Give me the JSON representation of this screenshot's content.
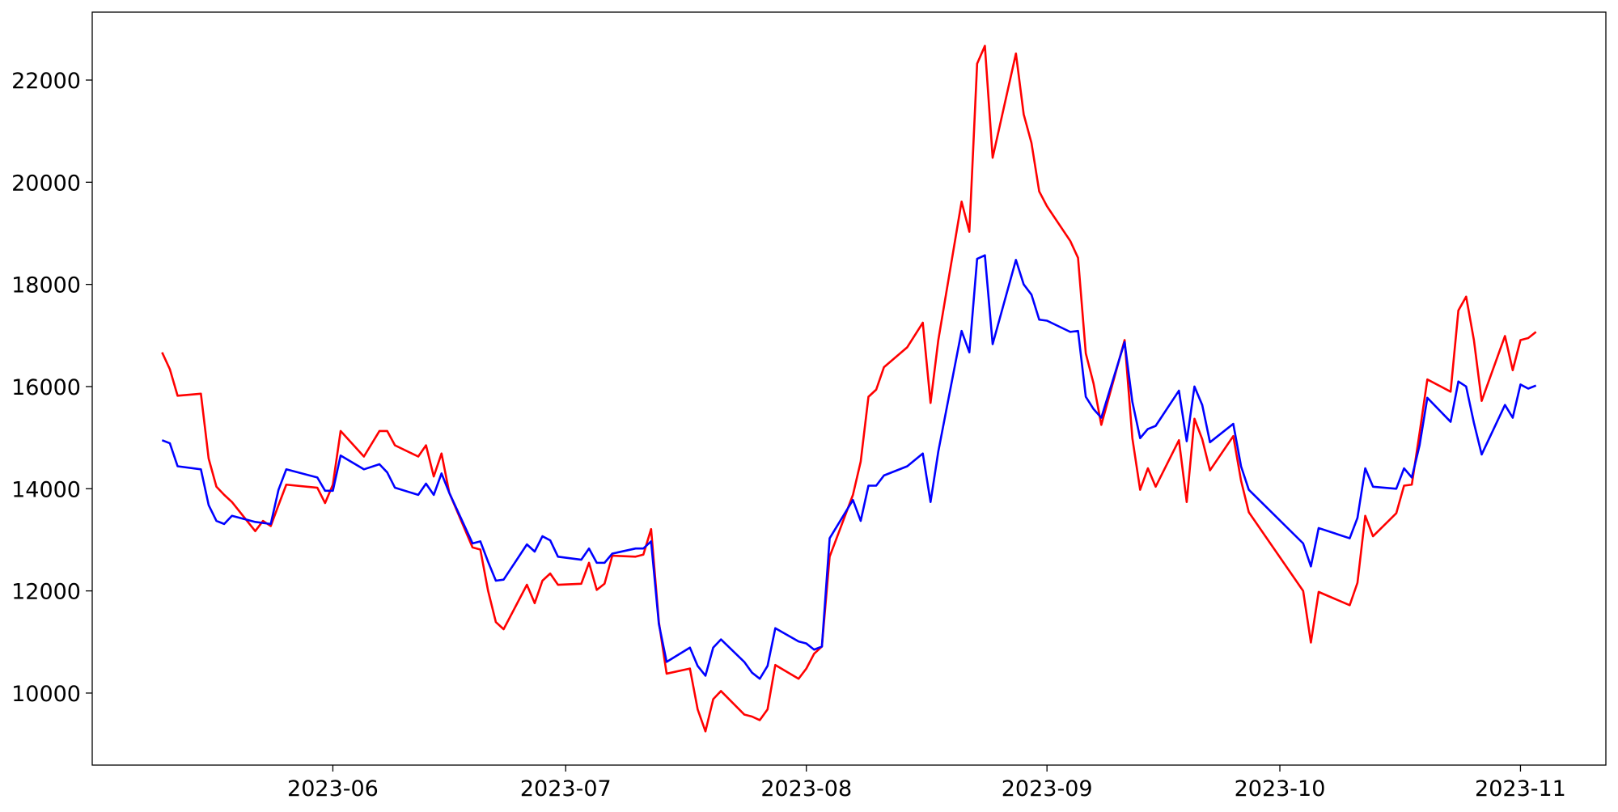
{
  "chart_data": {
    "type": "line",
    "x": [
      "2023-05-10",
      "2023-05-11",
      "2023-05-12",
      "2023-05-15",
      "2023-05-16",
      "2023-05-17",
      "2023-05-18",
      "2023-05-19",
      "2023-05-22",
      "2023-05-23",
      "2023-05-24",
      "2023-05-25",
      "2023-05-26",
      "2023-05-30",
      "2023-05-31",
      "2023-06-01",
      "2023-06-02",
      "2023-06-05",
      "2023-06-07",
      "2023-06-08",
      "2023-06-09",
      "2023-06-12",
      "2023-06-13",
      "2023-06-14",
      "2023-06-15",
      "2023-06-16",
      "2023-06-19",
      "2023-06-20",
      "2023-06-21",
      "2023-06-22",
      "2023-06-23",
      "2023-06-26",
      "2023-06-27",
      "2023-06-28",
      "2023-06-29",
      "2023-06-30",
      "2023-07-03",
      "2023-07-04",
      "2023-07-05",
      "2023-07-06",
      "2023-07-07",
      "2023-07-10",
      "2023-07-11",
      "2023-07-12",
      "2023-07-13",
      "2023-07-14",
      "2023-07-17",
      "2023-07-18",
      "2023-07-19",
      "2023-07-20",
      "2023-07-21",
      "2023-07-24",
      "2023-07-25",
      "2023-07-26",
      "2023-07-27",
      "2023-07-28",
      "2023-07-31",
      "2023-08-01",
      "2023-08-02",
      "2023-08-03",
      "2023-08-04",
      "2023-08-07",
      "2023-08-08",
      "2023-08-09",
      "2023-08-10",
      "2023-08-11",
      "2023-08-14",
      "2023-08-16",
      "2023-08-17",
      "2023-08-18",
      "2023-08-21",
      "2023-08-22",
      "2023-08-23",
      "2023-08-24",
      "2023-08-25",
      "2023-08-28",
      "2023-08-29",
      "2023-08-30",
      "2023-08-31",
      "2023-09-01",
      "2023-09-04",
      "2023-09-05",
      "2023-09-06",
      "2023-09-07",
      "2023-09-08",
      "2023-09-11",
      "2023-09-12",
      "2023-09-13",
      "2023-09-14",
      "2023-09-15",
      "2023-09-18",
      "2023-09-19",
      "2023-09-20",
      "2023-09-21",
      "2023-09-22",
      "2023-09-25",
      "2023-09-26",
      "2023-09-27",
      "2023-10-04",
      "2023-10-05",
      "2023-10-06",
      "2023-10-10",
      "2023-10-11",
      "2023-10-12",
      "2023-10-13",
      "2023-10-16",
      "2023-10-17",
      "2023-10-18",
      "2023-10-19",
      "2023-10-20",
      "2023-10-23",
      "2023-10-24",
      "2023-10-25",
      "2023-10-26",
      "2023-10-27",
      "2023-10-30",
      "2023-10-31",
      "2023-11-01",
      "2023-11-02",
      "2023-11-03"
    ],
    "series": [
      {
        "color": "#ff0000",
        "values": [
          16670,
          16340,
          15820,
          15860,
          14590,
          14040,
          13880,
          13740,
          13170,
          13370,
          13270,
          13680,
          14080,
          14020,
          13720,
          14080,
          15130,
          14630,
          15130,
          15130,
          14850,
          14630,
          14850,
          14240,
          14690,
          13920,
          12850,
          12810,
          12000,
          11390,
          11250,
          12120,
          11760,
          12200,
          12340,
          12120,
          12140,
          12550,
          12020,
          12140,
          12690,
          12670,
          12710,
          13210,
          11390,
          10380,
          10480,
          9680,
          9250,
          9880,
          10040,
          9580,
          9540,
          9470,
          9680,
          10550,
          10280,
          10480,
          10770,
          10910,
          12670,
          13880,
          14530,
          15800,
          15940,
          16380,
          16770,
          17250,
          15680,
          16910,
          19620,
          19030,
          22320,
          22670,
          20480,
          22520,
          21330,
          20770,
          19820,
          19530,
          18850,
          18520,
          16650,
          16060,
          15250,
          16910,
          14990,
          13980,
          14400,
          14040,
          14950,
          13740,
          15370,
          14970,
          14360,
          15030,
          14160,
          13540,
          12000,
          10990,
          11980,
          11720,
          12160,
          13470,
          13070,
          13520,
          14060,
          14080,
          15090,
          16140,
          15900,
          17490,
          17760,
          16910,
          15720,
          16990,
          16320,
          16910,
          16950,
          17070
        ]
      },
      {
        "color": "#0000ff",
        "values": [
          14950,
          14890,
          14440,
          14380,
          13680,
          13370,
          13310,
          13470,
          13350,
          13330,
          13310,
          13980,
          14380,
          14220,
          13960,
          13960,
          14650,
          14380,
          14480,
          14320,
          14020,
          13880,
          14100,
          13880,
          14300,
          13920,
          12930,
          12970,
          12570,
          12200,
          12220,
          12910,
          12770,
          13070,
          12990,
          12670,
          12610,
          12830,
          12550,
          12550,
          12730,
          12830,
          12830,
          12970,
          11350,
          10610,
          10890,
          10530,
          10340,
          10890,
          11050,
          10610,
          10400,
          10280,
          10530,
          11270,
          11010,
          10970,
          10850,
          10910,
          13030,
          13780,
          13370,
          14060,
          14060,
          14260,
          14440,
          14690,
          13740,
          14730,
          17090,
          16670,
          18500,
          18570,
          16830,
          18480,
          18000,
          17800,
          17310,
          17290,
          17070,
          17090,
          15800,
          15560,
          15390,
          16870,
          15700,
          14990,
          15170,
          15230,
          15920,
          14930,
          16000,
          15640,
          14910,
          15270,
          14440,
          13980,
          12930,
          12480,
          13230,
          13030,
          13430,
          14400,
          14040,
          14000,
          14400,
          14220,
          14850,
          15780,
          15310,
          16100,
          16000,
          15290,
          14670,
          15640,
          15390,
          16040,
          15960,
          16020
        ]
      }
    ],
    "xlim": [
      "2023-05-01",
      "2023-11-12"
    ],
    "xticks": [
      {
        "value": "2023-06-01",
        "label": "2023-06"
      },
      {
        "value": "2023-07-01",
        "label": "2023-07"
      },
      {
        "value": "2023-08-01",
        "label": "2023-08"
      },
      {
        "value": "2023-09-01",
        "label": "2023-09"
      },
      {
        "value": "2023-10-01",
        "label": "2023-10"
      },
      {
        "value": "2023-11-01",
        "label": "2023-11"
      }
    ],
    "ylim": [
      8590,
      23330
    ],
    "yticks": [
      10000,
      12000,
      14000,
      16000,
      18000,
      20000,
      22000
    ]
  }
}
